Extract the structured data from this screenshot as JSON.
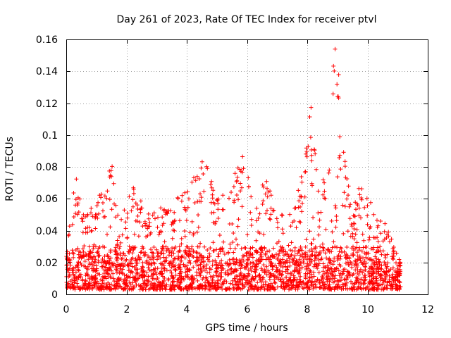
{
  "chart_data": {
    "type": "scatter",
    "title": "Day 261 of 2023, Rate Of TEC Index for receiver ptvl",
    "xlabel": "GPS time / hours",
    "ylabel": "ROTI / TECUs",
    "xlim": [
      0,
      12
    ],
    "ylim": [
      0,
      0.16
    ],
    "x_ticks": [
      0,
      2,
      4,
      6,
      8,
      10,
      12
    ],
    "x_tick_labels": [
      "0",
      "2",
      "4",
      "6",
      "8",
      "10",
      "12"
    ],
    "y_ticks": [
      0,
      0.02,
      0.04,
      0.06,
      0.08,
      0.1,
      0.12,
      0.14,
      0.16
    ],
    "y_tick_labels": [
      "0",
      "0.02",
      "0.04",
      "0.06",
      "0.08",
      "0.1",
      "0.12",
      "0.14",
      "0.16"
    ],
    "grid": true,
    "marker": "plus",
    "color": "#ff0000",
    "data_time_range": [
      0,
      11.1
    ],
    "envelope": {
      "x": [
        0.0,
        0.2,
        0.3,
        0.6,
        1.0,
        1.5,
        1.8,
        2.3,
        2.6,
        3.0,
        3.5,
        4.0,
        4.6,
        5.0,
        5.5,
        5.9,
        6.2,
        6.6,
        7.0,
        7.5,
        8.0,
        8.1,
        8.2,
        8.4,
        8.6,
        8.8,
        8.9,
        9.0,
        9.2,
        9.5,
        9.8,
        10.0,
        10.3,
        10.6,
        11.0,
        11.1
      ],
      "y": [
        0.04,
        0.06,
        0.078,
        0.05,
        0.058,
        0.083,
        0.05,
        0.074,
        0.05,
        0.052,
        0.062,
        0.065,
        0.088,
        0.06,
        0.072,
        0.089,
        0.055,
        0.078,
        0.05,
        0.052,
        0.1,
        0.12,
        0.11,
        0.06,
        0.085,
        0.12,
        0.157,
        0.15,
        0.1,
        0.05,
        0.075,
        0.06,
        0.055,
        0.045,
        0.025,
        0.02
      ]
    },
    "baseline_range": [
      0.003,
      0.03
    ]
  }
}
